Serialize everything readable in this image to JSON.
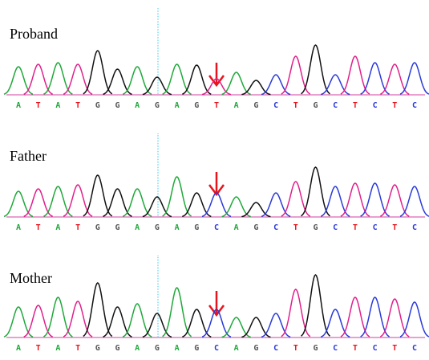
{
  "panels": [
    {
      "label": "Proband",
      "bases": [
        "A",
        "T",
        "A",
        "T",
        "G",
        "G",
        "A",
        "G",
        "A",
        "G",
        "T",
        "A",
        "G",
        "C",
        "T",
        "G",
        "C",
        "T",
        "C",
        "T",
        "C"
      ],
      "peaks": [
        35,
        38,
        40,
        38,
        55,
        32,
        35,
        22,
        38,
        37,
        20,
        28,
        18,
        25,
        48,
        62,
        25,
        48,
        40,
        38,
        40
      ]
    },
    {
      "label": "Father",
      "bases": [
        "A",
        "T",
        "A",
        "T",
        "G",
        "G",
        "A",
        "G",
        "A",
        "G",
        "C",
        "A",
        "G",
        "C",
        "T",
        "G",
        "C",
        "T",
        "C",
        "T",
        "C"
      ],
      "peaks": [
        32,
        35,
        38,
        40,
        52,
        35,
        35,
        25,
        50,
        30,
        30,
        25,
        18,
        30,
        44,
        62,
        38,
        42,
        42,
        40,
        38
      ]
    },
    {
      "label": "Mother",
      "bases": [
        "A",
        "T",
        "A",
        "T",
        "G",
        "G",
        "A",
        "G",
        "A",
        "G",
        "C",
        "A",
        "G",
        "C",
        "T",
        "G",
        "C",
        "T",
        "C",
        "T",
        "C"
      ],
      "peaks": [
        38,
        40,
        50,
        45,
        68,
        38,
        42,
        30,
        62,
        35,
        35,
        25,
        25,
        30,
        60,
        78,
        35,
        50,
        50,
        48,
        44
      ]
    }
  ]
}
